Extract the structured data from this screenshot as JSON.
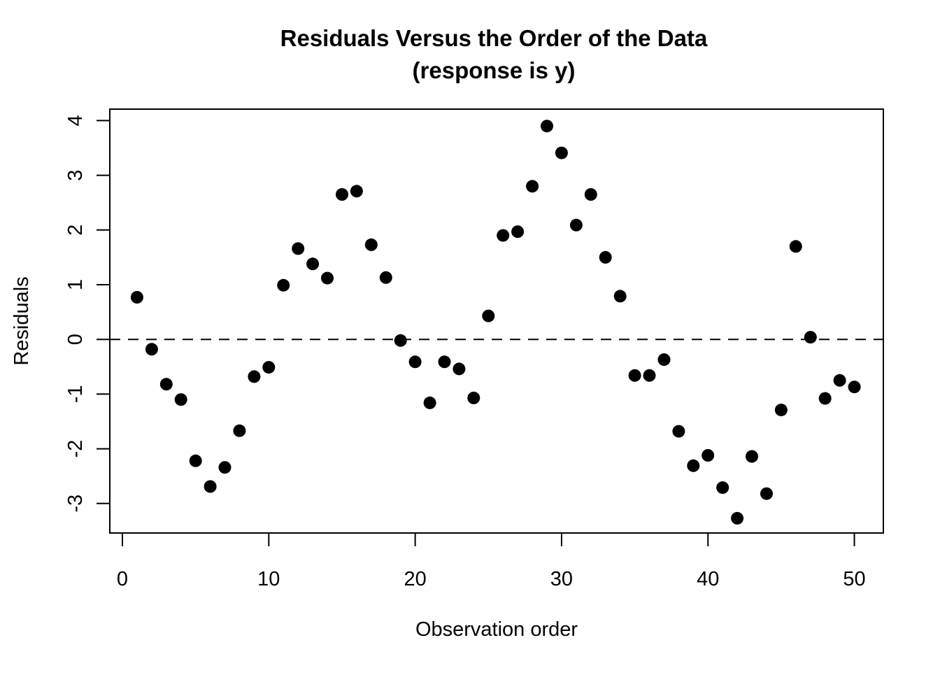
{
  "figure": {
    "background": "#ffffff",
    "foreground": "#000000"
  },
  "chart_data": {
    "type": "scatter",
    "title": "Residuals Versus the Order of the Data",
    "subtitle": "(response is y)",
    "xlabel": "Observation order",
    "ylabel": "Residuals",
    "point_color": "#000000",
    "x": [
      1,
      2,
      3,
      4,
      5,
      6,
      7,
      8,
      9,
      10,
      11,
      12,
      13,
      14,
      15,
      16,
      17,
      18,
      19,
      20,
      21,
      22,
      23,
      24,
      25,
      26,
      27,
      28,
      29,
      30,
      31,
      32,
      33,
      34,
      35,
      36,
      37,
      38,
      39,
      40,
      41,
      42,
      43,
      44,
      45,
      46,
      47,
      48,
      49,
      50
    ],
    "y": [
      0.77,
      -0.18,
      -0.82,
      -1.1,
      -2.22,
      -2.69,
      -2.34,
      -1.67,
      -0.68,
      -0.51,
      0.99,
      1.66,
      1.38,
      1.12,
      2.65,
      2.71,
      1.73,
      1.13,
      -0.02,
      -0.41,
      -1.16,
      -0.41,
      -0.54,
      -1.07,
      0.43,
      1.9,
      1.97,
      2.8,
      3.9,
      3.41,
      2.09,
      2.65,
      1.5,
      0.79,
      -0.66,
      -0.66,
      -0.37,
      -1.68,
      -2.31,
      -2.12,
      -2.71,
      -3.27,
      -2.14,
      -2.82,
      -1.29,
      1.7,
      0.04,
      -1.08,
      -0.75,
      -0.87
    ],
    "xticks": [
      0,
      10,
      20,
      30,
      40,
      50
    ],
    "yticks": [
      -3,
      -2,
      -1,
      0,
      1,
      2,
      3,
      4
    ],
    "xlim": [
      -0.86,
      51.98
    ],
    "ylim": [
      -3.54,
      4.21
    ],
    "zero_line": {
      "y": 0,
      "style": "dashed"
    },
    "grid": false
  }
}
